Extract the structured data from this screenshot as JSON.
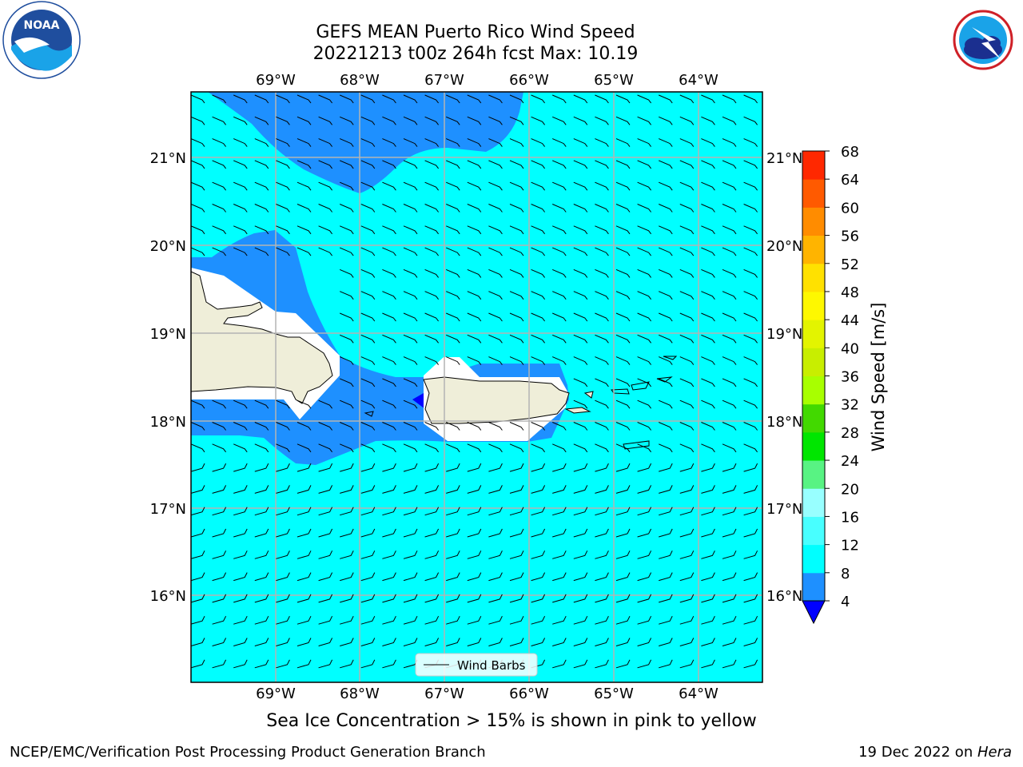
{
  "header": {
    "title_line1": "GEFS MEAN Puerto Rico Wind Speed",
    "title_line2": "20221213 t00z 264h fcst   Max: 10.19"
  },
  "logos": {
    "left": "NOAA",
    "left_ring_text": "NATIONAL OCEANIC AND ATMOSPHERIC ADMINISTRATION · U.S. DEPARTMENT OF COMMERCE",
    "right_ring_text": "NATIONAL WEATHER SERVICE"
  },
  "map": {
    "lon_labels": [
      "69°W",
      "68°W",
      "67°W",
      "66°W",
      "65°W",
      "64°W"
    ],
    "lat_labels": [
      "21°N",
      "20°N",
      "19°N",
      "18°N",
      "17°N",
      "16°N"
    ],
    "legend_label": "Wind Barbs",
    "colors": {
      "ocean_main": "#00ffff",
      "wind_4_8": "#1e90ff",
      "wind_lt4": "#0000ff",
      "land": "#efeed9"
    }
  },
  "colorbar": {
    "label": "Wind Speed [m/s]",
    "ticks": [
      "4",
      "8",
      "12",
      "16",
      "20",
      "24",
      "28",
      "32",
      "36",
      "40",
      "44",
      "48",
      "52",
      "56",
      "60",
      "64",
      "68"
    ],
    "colors": [
      "#1e90ff",
      "#00ffff",
      "#48ffff",
      "#98ffff",
      "#58f383",
      "#00e600",
      "#42d900",
      "#a8ff00",
      "#c8ee00",
      "#e3f400",
      "#fef800",
      "#ffe100",
      "#ffb400",
      "#ff8c00",
      "#ff5a00",
      "#ff2800"
    ],
    "under_color": "#0000ff"
  },
  "footer": {
    "subnote": "Sea Ice Concentration > 15% is shown in pink to yellow",
    "left": "NCEP/EMC/Verification Post Processing Product Generation Branch",
    "right_prefix": "19 Dec 2022 on ",
    "right_host": "Hera"
  }
}
